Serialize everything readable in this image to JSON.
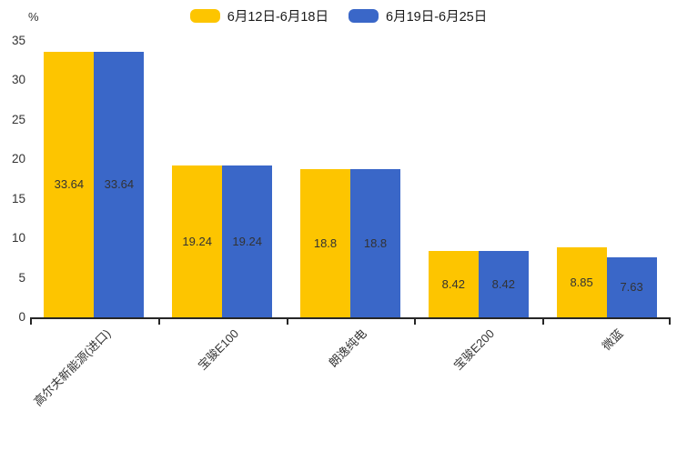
{
  "chart_data": {
    "type": "bar",
    "title": "",
    "ylabel": "%",
    "xlabel": "",
    "categories": [
      "高尔夫新能源(进口)",
      "宝骏E100",
      "朗逸纯电",
      "宝骏E200",
      "微蓝"
    ],
    "series": [
      {
        "name": "6月12日-6月18日",
        "color": "#FDC500",
        "values": [
          33.64,
          19.24,
          18.8,
          8.42,
          8.85
        ]
      },
      {
        "name": "6月19日-6月25日",
        "color": "#3A67C8",
        "values": [
          33.64,
          19.24,
          18.8,
          8.42,
          7.63
        ]
      }
    ],
    "ylim": [
      0,
      35
    ],
    "yticks": [
      0,
      5,
      10,
      15,
      20,
      25,
      30,
      35
    ],
    "grid": false,
    "legend_position": "top",
    "value_labels": "inside-center",
    "xlabel_rotation_deg": 45,
    "axis_color": "#262626",
    "text_color": "#333333",
    "background_color": "#ffffff"
  }
}
